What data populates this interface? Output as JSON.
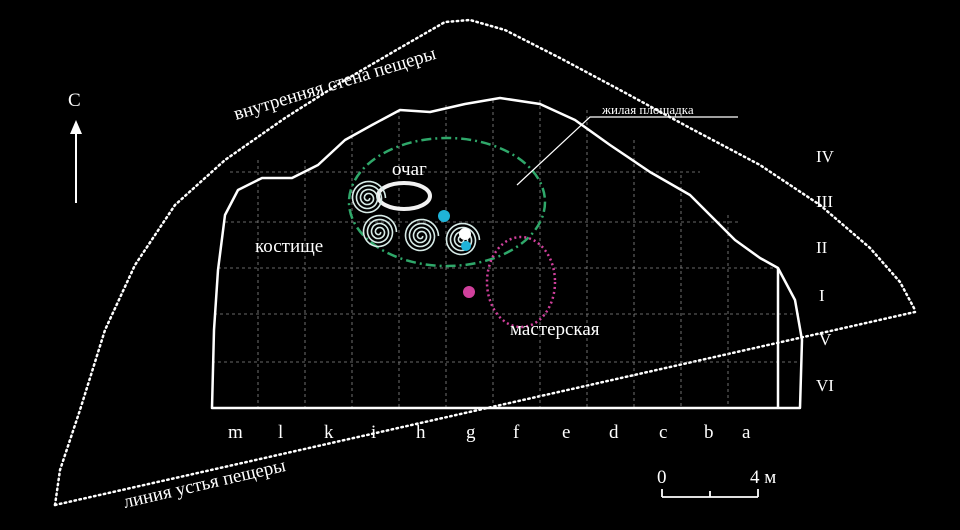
{
  "north": "С",
  "labels": {
    "inner_wall": "внутренняя стена пещеры",
    "mouth_line": "линия устья пещеры",
    "living_area": "жилая площадка",
    "hearth": "очаг",
    "bone_pile": "костище",
    "workshop": "мастерская"
  },
  "rows": [
    "IV",
    "III",
    "II",
    "I",
    "V",
    "VI"
  ],
  "columns": [
    "m",
    "l",
    "k",
    "i",
    "h",
    "g",
    "f",
    "e",
    "d",
    "c",
    "b",
    "a"
  ],
  "scale": {
    "start": "0",
    "end": "4 м"
  },
  "colors": {
    "background": "#000000",
    "outline": "#ffffff",
    "grid": "#8a8a8a",
    "living_area": "#2fa86a",
    "workshop": "#d0409c",
    "bone_spirals": "#d8ece8",
    "marker_cyan": "#1fb3d8",
    "marker_magenta": "#d0409c"
  }
}
